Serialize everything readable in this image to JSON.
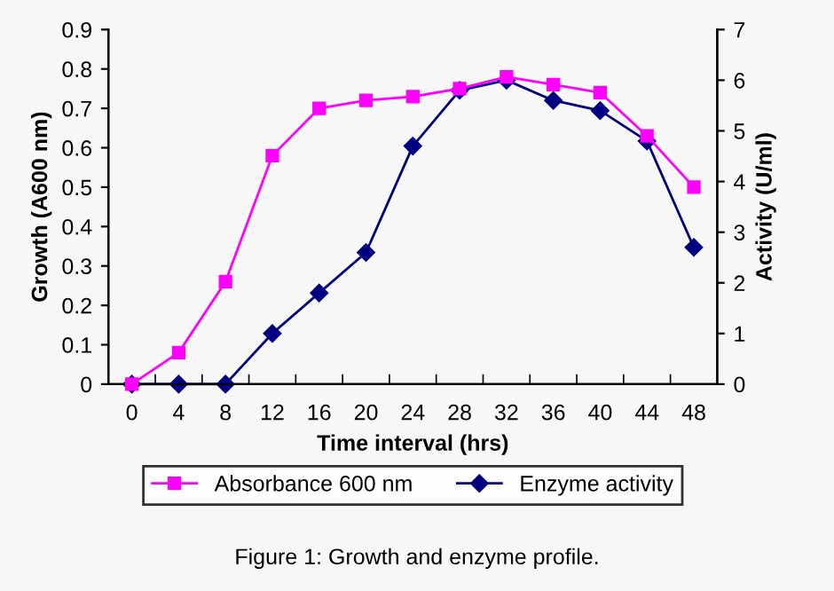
{
  "chart_data": {
    "type": "line",
    "categories": [
      "0",
      "4",
      "8",
      "12",
      "16",
      "20",
      "24",
      "28",
      "32",
      "36",
      "40",
      "44",
      "48"
    ],
    "xlabel": "Time interval (hrs)",
    "ylabel": "Growth (A600 nm)",
    "y2label": "Activity (U/ml)",
    "series": [
      {
        "name": "Absorbance 600 nm",
        "color": "#ff00ff",
        "marker": "square",
        "values": [
          0,
          0.08,
          0.26,
          0.58,
          0.7,
          0.72,
          0.73,
          0.75,
          0.78,
          0.76,
          0.74,
          0.63,
          0.5
        ]
      },
      {
        "name": "Enzyme activity",
        "color": "#000080",
        "marker": "diamond",
        "axis": "y2",
        "values": [
          0,
          0,
          0,
          1.0,
          1.8,
          2.6,
          4.7,
          5.8,
          6.0,
          5.6,
          5.4,
          4.8,
          2.7
        ]
      }
    ],
    "ylim": [
      0,
      0.9
    ],
    "yticks": [
      0,
      0.1,
      0.2,
      0.3,
      0.4,
      0.5,
      0.6,
      0.7,
      0.8,
      0.9
    ],
    "y2lim": [
      0,
      7
    ],
    "y2ticks": [
      0,
      1,
      2,
      3,
      4,
      5,
      6,
      7
    ],
    "legend": "bottom",
    "grid": false,
    "line_style": "solid",
    "annotations": [
      "Figure 1: Growth and enzyme profile."
    ]
  }
}
